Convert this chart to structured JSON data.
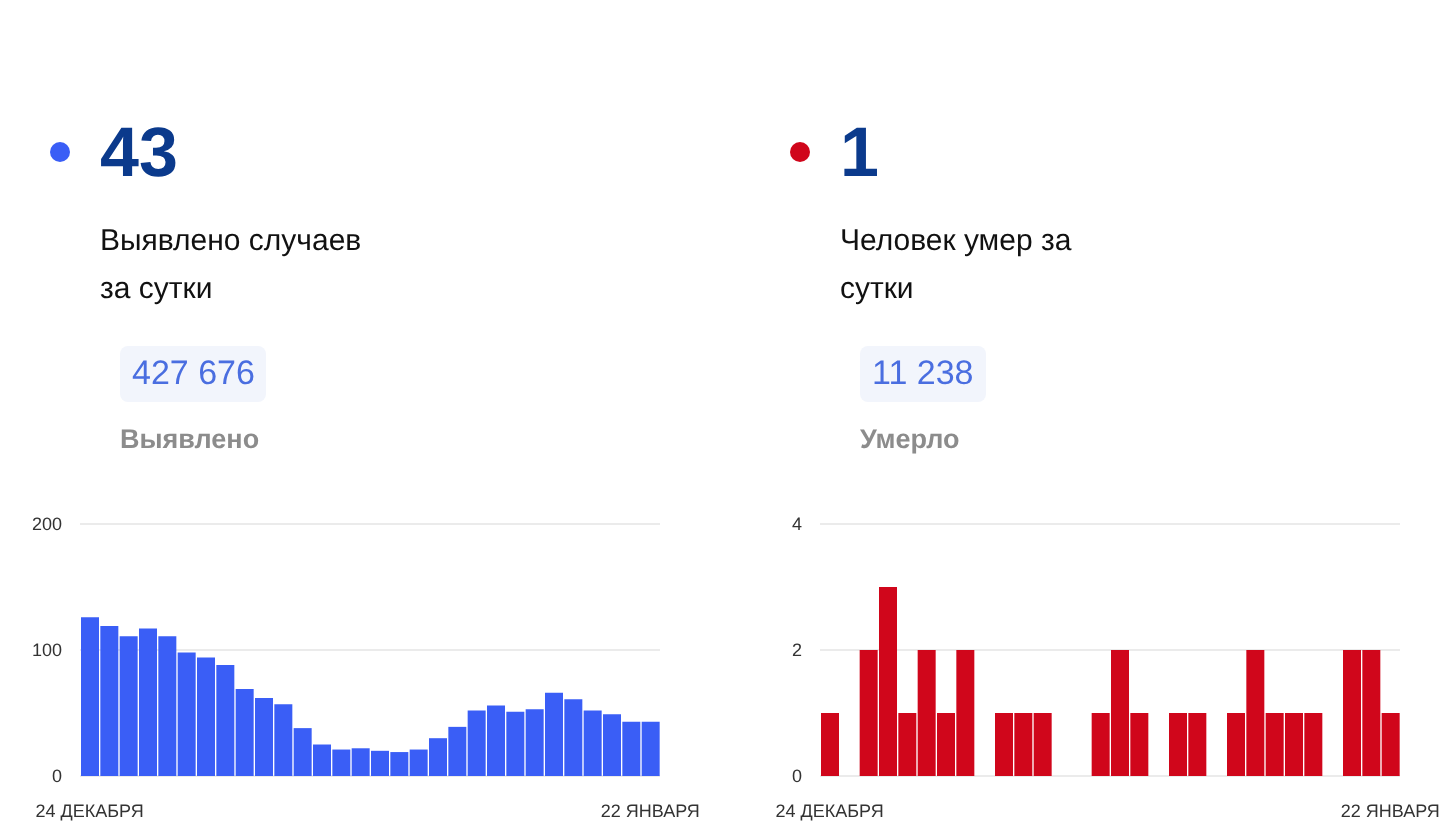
{
  "chart_data": [
    {
      "type": "bar",
      "title": "43",
      "subtitle": "Выявлено случаев за сутки",
      "annotations": [
        "427 676",
        "Выявлено"
      ],
      "categories": [
        "24 ДЕКАБРЯ",
        null,
        null,
        null,
        null,
        null,
        null,
        null,
        null,
        null,
        null,
        null,
        null,
        null,
        null,
        null,
        null,
        null,
        null,
        null,
        null,
        null,
        null,
        null,
        null,
        null,
        null,
        null,
        null,
        "22 ЯНВАРЯ"
      ],
      "series": [
        {
          "color": "#3a5ef6",
          "values": [
            126,
            119,
            111,
            117,
            111,
            98,
            94,
            88,
            69,
            62,
            57,
            38,
            25,
            21,
            22,
            20,
            19,
            21,
            30,
            39,
            52,
            56,
            51,
            53,
            66,
            61,
            52,
            49,
            43,
            43
          ]
        }
      ],
      "ylim": [
        0,
        200
      ],
      "yticks": [
        0,
        100,
        200
      ],
      "grid": "y"
    },
    {
      "type": "bar",
      "title": "1",
      "subtitle": "Человек умер за сутки",
      "annotations": [
        "11 238",
        "Умерло"
      ],
      "categories": [
        "24 ДЕКАБРЯ",
        null,
        null,
        null,
        null,
        null,
        null,
        null,
        null,
        null,
        null,
        null,
        null,
        null,
        null,
        null,
        null,
        null,
        null,
        null,
        null,
        null,
        null,
        null,
        null,
        null,
        null,
        null,
        null,
        "22 ЯНВАРЯ"
      ],
      "series": [
        {
          "color": "#d0061b",
          "values": [
            1,
            0,
            2,
            3,
            1,
            2,
            1,
            2,
            0,
            1,
            1,
            1,
            0,
            0,
            1,
            2,
            1,
            0,
            1,
            1,
            0,
            1,
            2,
            1,
            1,
            1,
            0,
            2,
            2,
            1
          ]
        }
      ],
      "ylim": [
        0,
        4
      ],
      "yticks": [
        0,
        2,
        4
      ],
      "grid": "y"
    }
  ]
}
